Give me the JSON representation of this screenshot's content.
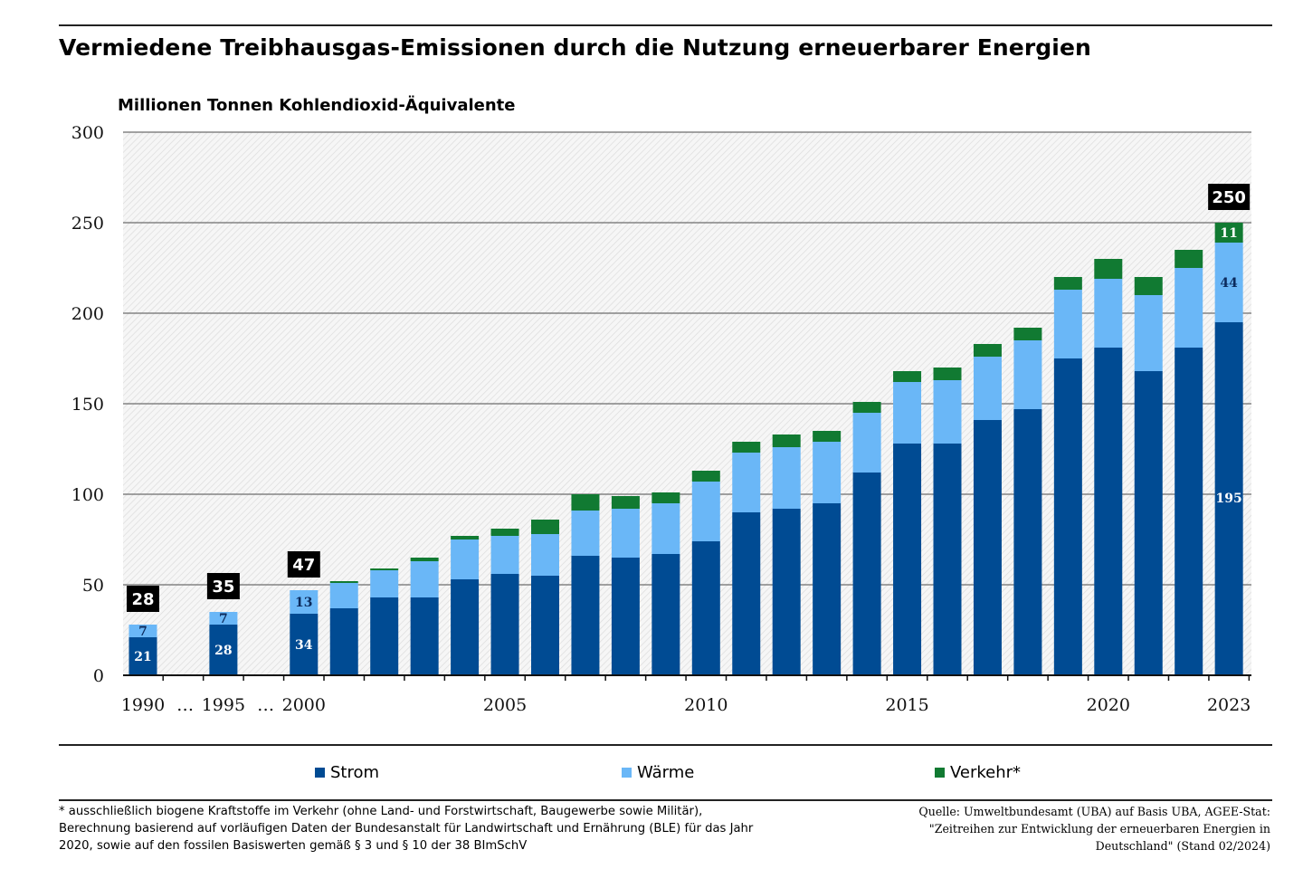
{
  "title": "Vermiedene Treibhausgas-Emissionen durch die Nutzung erneuerbarer Energien",
  "footnote": "* ausschließlich biogene Kraftstoffe im Verkehr (ohne Land- und Forstwirtschaft, Baugewerbe sowie Militär), Berechnung basierend auf vorläufigen Daten der Bundesanstalt für Landwirtschaft und Ernährung (BLE) für das Jahr 2020, sowie auf den fossilen Basiswerten gemäß § 3 und § 10 der 38 BImSchV",
  "source": "Quelle: Umweltbundesamt (UBA) auf Basis UBA, AGEE-Stat: \"Zeitreihen zur Entwicklung der erneuerbaren Energien in Deutschland\" (Stand 02/2024)",
  "legend": [
    {
      "label": "Strom",
      "color": "#004b93"
    },
    {
      "label": "Wärme",
      "color": "#6ab7f7"
    },
    {
      "label": "Verkehr*",
      "color": "#117a32"
    }
  ],
  "chart_data": {
    "type": "bar",
    "stacked": true,
    "title": "Vermiedene Treibhausgas-Emissionen durch die Nutzung erneuerbarer Energien",
    "ylabel": "Millionen Tonnen Kohlendioxid-Äquivalente",
    "xlabel": "",
    "ylim": [
      0,
      300
    ],
    "yticks": [
      0,
      50,
      100,
      150,
      200,
      250,
      300
    ],
    "grid": true,
    "legend_position": "bottom",
    "categories": [
      "1990",
      "1995",
      "2000",
      "2001",
      "2002",
      "2003",
      "2004",
      "2005",
      "2006",
      "2007",
      "2008",
      "2009",
      "2010",
      "2011",
      "2012",
      "2013",
      "2014",
      "2015",
      "2016",
      "2017",
      "2018",
      "2019",
      "2020",
      "2021",
      "2022",
      "2023"
    ],
    "xtick_labels": [
      "1990",
      "…",
      "1995",
      "…",
      "2000",
      "2005",
      "2010",
      "2015",
      "2020",
      "2023"
    ],
    "series": [
      {
        "name": "Strom",
        "color": "#004b93",
        "values": [
          21,
          28,
          34,
          37,
          43,
          43,
          53,
          56,
          55,
          66,
          65,
          67,
          74,
          90,
          92,
          95,
          112,
          128,
          128,
          141,
          147,
          175,
          181,
          168,
          181,
          195
        ]
      },
      {
        "name": "Wärme",
        "color": "#6ab7f7",
        "values": [
          7,
          7,
          13,
          14,
          15,
          20,
          22,
          21,
          23,
          25,
          27,
          28,
          33,
          33,
          34,
          34,
          33,
          34,
          35,
          35,
          38,
          38,
          38,
          42,
          44,
          44
        ]
      },
      {
        "name": "Verkehr*",
        "color": "#117a32",
        "values": [
          0,
          0,
          0,
          1,
          1,
          2,
          2,
          4,
          8,
          9,
          7,
          6,
          6,
          6,
          7,
          6,
          6,
          6,
          7,
          7,
          7,
          7,
          11,
          10,
          10,
          11
        ]
      }
    ],
    "segment_labels": [
      {
        "category": "1990",
        "series": "Strom",
        "text": "21"
      },
      {
        "category": "1990",
        "series": "Wärme",
        "text": "7"
      },
      {
        "category": "1995",
        "series": "Strom",
        "text": "28"
      },
      {
        "category": "1995",
        "series": "Wärme",
        "text": "7"
      },
      {
        "category": "2000",
        "series": "Strom",
        "text": "34"
      },
      {
        "category": "2000",
        "series": "Wärme",
        "text": "13"
      },
      {
        "category": "2023",
        "series": "Strom",
        "text": "195"
      },
      {
        "category": "2023",
        "series": "Wärme",
        "text": "44"
      },
      {
        "category": "2023",
        "series": "Verkehr*",
        "text": "11"
      }
    ],
    "total_labels": [
      {
        "category": "1990",
        "text": "28"
      },
      {
        "category": "1995",
        "text": "35"
      },
      {
        "category": "2000",
        "text": "47"
      },
      {
        "category": "2023",
        "text": "250"
      }
    ]
  }
}
